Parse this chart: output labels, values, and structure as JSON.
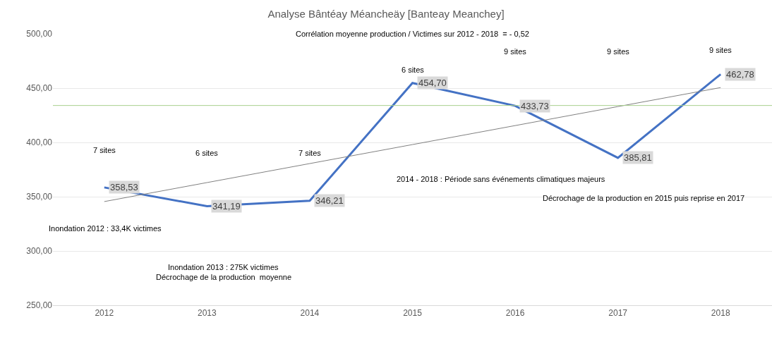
{
  "chart_data": {
    "type": "line",
    "title": "Analyse Bântéay Méancheäy [Banteay Meanchey]",
    "subtitle": "Corrélation moyenne production / Victimes sur 2012 - 2018  = - 0,52",
    "categories": [
      "2012",
      "2013",
      "2014",
      "2015",
      "2016",
      "2017",
      "2018"
    ],
    "series": [
      {
        "color": "#4472c4",
        "values": [
          358.53,
          341.19,
          346.21,
          454.7,
          433.73,
          385.81,
          462.78
        ],
        "value_labels": [
          "358,53",
          "341,19",
          "346,21",
          "454,70",
          "433,73",
          "385,81",
          "462,78"
        ]
      },
      {
        "type": "line",
        "color": "#808080",
        "values": [
          345.5,
          363,
          380.5,
          398,
          415.5,
          433,
          450.5
        ]
      }
    ],
    "ylim": [
      250,
      500
    ],
    "yticks": [
      {
        "value": 250,
        "label": "250,00"
      },
      {
        "value": 300,
        "label": "300,00"
      },
      {
        "value": 350,
        "label": "350,00"
      },
      {
        "value": 400,
        "label": "400,00"
      },
      {
        "value": 450,
        "label": "450,00"
      },
      {
        "value": 500,
        "label": "500,00"
      }
    ],
    "ref_lines": [
      {
        "axis": "y",
        "value": 434,
        "color": "#a9d18e"
      }
    ],
    "grid": "y",
    "legend": false,
    "annotations": [
      "7 sites",
      "6 sites",
      "7 sites",
      "6 sites",
      "9 sites",
      "9 sites",
      "9 sites",
      "2014 - 2018 : Période sans événements climatiques majeurs",
      "Décrochage de la production en 2015 puis reprise en 2017",
      "Inondation 2012 : 33,4K victimes",
      "Inondation 2013 : 275K victimes",
      "Décrochage de la production  moyenne"
    ]
  }
}
